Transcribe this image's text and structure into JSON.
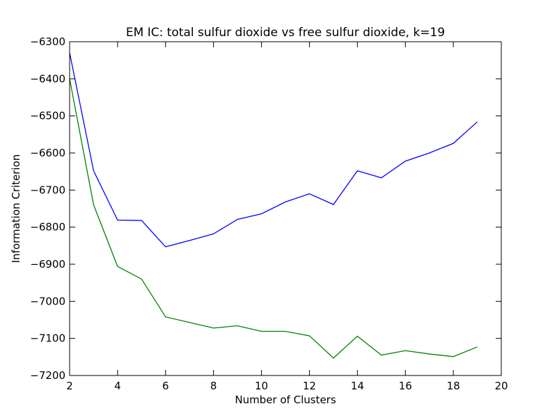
{
  "chart_data": {
    "type": "line",
    "title": "EM IC: total sulfur dioxide vs free sulfur dioxide, k=19",
    "xlabel": "Number of Clusters",
    "ylabel": "Information Criterion",
    "xlim": [
      2,
      20
    ],
    "ylim": [
      -7200,
      -6300
    ],
    "xticks": [
      2,
      4,
      6,
      8,
      10,
      12,
      14,
      16,
      18,
      20
    ],
    "yticks": [
      -6300,
      -6400,
      -6500,
      -6600,
      -6700,
      -6800,
      -6900,
      -7000,
      -7100,
      -7200
    ],
    "grid": false,
    "x": [
      2,
      3,
      4,
      5,
      6,
      7,
      8,
      9,
      10,
      11,
      12,
      13,
      14,
      15,
      16,
      17,
      18,
      19
    ],
    "series": [
      {
        "color": "#0000ff",
        "values": [
          -6330,
          -6648,
          -6781,
          -6782,
          -6853,
          -6836,
          -6818,
          -6779,
          -6764,
          -6732,
          -6710,
          -6739,
          -6648,
          -6667,
          -6622,
          -6600,
          -6574,
          -6516
        ]
      },
      {
        "color": "#008000",
        "values": [
          -6400,
          -6740,
          -6906,
          -6940,
          -7042,
          -7057,
          -7072,
          -7066,
          -7081,
          -7081,
          -7093,
          -7153,
          -7094,
          -7145,
          -7133,
          -7142,
          -7149,
          -7123
        ]
      }
    ]
  }
}
